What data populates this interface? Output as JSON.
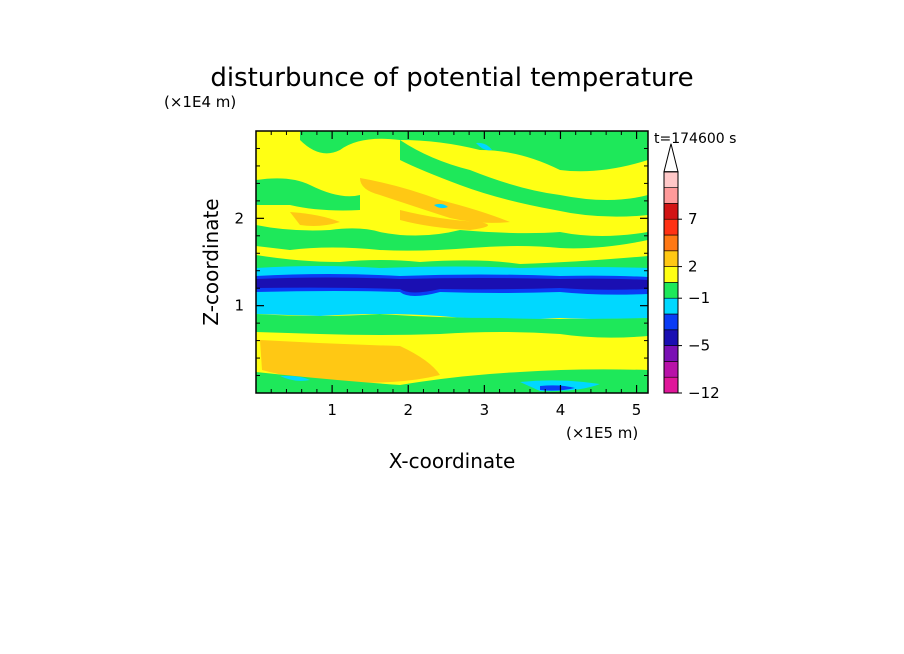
{
  "chart_data": {
    "type": "heatmap",
    "title": "disturbunce of potential temperature",
    "xlabel": "X-coordinate",
    "ylabel": "Z-coordinate",
    "x_unit": "(×1E5 m)",
    "y_unit": "(×1E4 m)",
    "time_label": "t=174600 s",
    "xlim": [
      0,
      5.15
    ],
    "ylim": [
      0,
      3.0
    ],
    "x_ticks": [
      "1",
      "2",
      "3",
      "4",
      "5"
    ],
    "y_ticks": [
      "1",
      "2"
    ],
    "colorbar": {
      "levels": [
        {
          "color": "#e0179a"
        },
        {
          "color": "#b812a8"
        },
        {
          "color": "#7a10b4"
        },
        {
          "color": "#1a0fb2"
        },
        {
          "color": "#0a3cf5"
        },
        {
          "color": "#00d8ff"
        },
        {
          "color": "#1ee85a"
        },
        {
          "color": "#ffff14"
        },
        {
          "color": "#ffc814"
        },
        {
          "color": "#ff7814"
        },
        {
          "color": "#ff3214"
        },
        {
          "color": "#d21414"
        },
        {
          "color": "#ff9a9a"
        },
        {
          "color": "#ffc8c8"
        }
      ],
      "labels": [
        {
          "text": "7",
          "index": 11
        },
        {
          "text": "2",
          "index": 8
        },
        {
          "text": "−1",
          "index": 6
        },
        {
          "text": "−5",
          "index": 3
        },
        {
          "text": "−12",
          "index": 0
        }
      ],
      "extend_max": true
    }
  }
}
